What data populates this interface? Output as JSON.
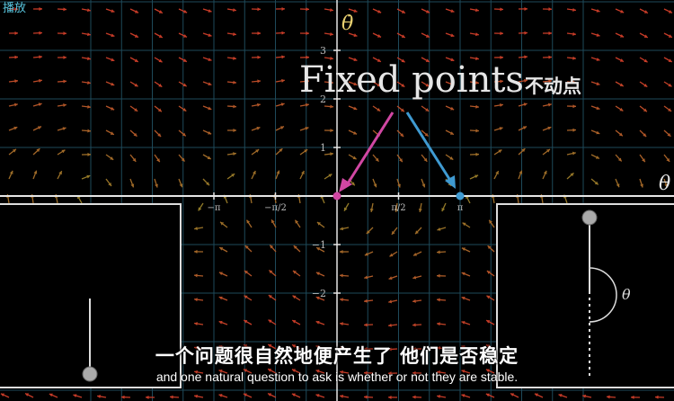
{
  "player": {
    "play_label": "播放"
  },
  "plot": {
    "x_axis_label": "θ",
    "y_axis_label": "θ̇",
    "y_ticks": [
      {
        "value": 3,
        "label": "3"
      },
      {
        "value": 2,
        "label": "2"
      },
      {
        "value": 1,
        "label": "1"
      },
      {
        "value": -1,
        "label": "−1"
      },
      {
        "value": -2,
        "label": "−2"
      }
    ],
    "x_ticks": [
      {
        "value": -1,
        "label": "−π"
      },
      {
        "value": -0.5,
        "label": "−π/2"
      },
      {
        "value": 0.5,
        "label": "π/2"
      },
      {
        "value": 1,
        "label": "π"
      }
    ],
    "fixed_points": [
      {
        "theta": 0,
        "theta_dot": 0,
        "color": "#d147a3"
      },
      {
        "theta": 1,
        "theta_dot": 0,
        "color": "#3f9ad1"
      }
    ],
    "colors": {
      "axis": "#e6e6e6",
      "grid": "#1e4a5a",
      "slow_vector": "#8a7a20",
      "fast_vector": "#c0392b"
    }
  },
  "annotation": {
    "title": "Fixed points",
    "title_cn": "不动点",
    "arrow_colors": [
      "#d147a3",
      "#3f9ad1"
    ]
  },
  "pendulum_right": {
    "angle_label": "θ"
  },
  "subtitles": {
    "chinese": "一个问题很自然地便产生了 他们是否稳定",
    "english": "and one natural question to ask is whether or not they are stable."
  }
}
